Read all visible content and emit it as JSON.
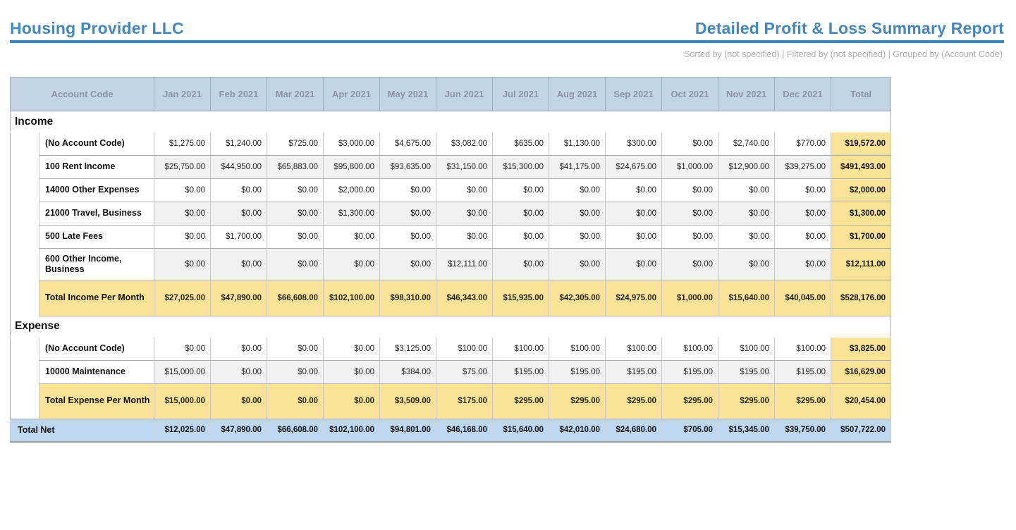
{
  "header": {
    "company": "Housing Provider LLC",
    "report_title": "Detailed Profit & Loss Summary Report",
    "subtitle": "Sorted by (not specified) | Filtered by (not specified) | Grouped by (Account Code)"
  },
  "colors": {
    "title_blue": "#4687b7",
    "table_header_bg": "#c5d4e2",
    "table_header_text": "#8a94a3",
    "total_highlight": "#fae396",
    "net_row_bg": "#bdd7f1",
    "alt_row_bg": "#f1f1f1"
  },
  "table": {
    "columns": [
      "Account Code",
      "Jan 2021",
      "Feb 2021",
      "Mar 2021",
      "Apr 2021",
      "May 2021",
      "Jun 2021",
      "Jul 2021",
      "Aug 2021",
      "Sep 2021",
      "Oct 2021",
      "Nov 2021",
      "Dec 2021",
      "Total"
    ],
    "sections": [
      {
        "name": "Income",
        "rows": [
          {
            "label": "(No Account Code)",
            "values": [
              "$1,275.00",
              "$1,240.00",
              "$725.00",
              "$3,000.00",
              "$4,675.00",
              "$3,082.00",
              "$635.00",
              "$1,130.00",
              "$300.00",
              "$0.00",
              "$2,740.00",
              "$770.00"
            ],
            "total": "$19,572.00"
          },
          {
            "label": "100 Rent Income",
            "values": [
              "$25,750.00",
              "$44,950.00",
              "$65,883.00",
              "$95,800.00",
              "$93,635.00",
              "$31,150.00",
              "$15,300.00",
              "$41,175.00",
              "$24,675.00",
              "$1,000.00",
              "$12,900.00",
              "$39,275.00"
            ],
            "total": "$491,493.00"
          },
          {
            "label": "14000 Other Expenses",
            "values": [
              "$0.00",
              "$0.00",
              "$0.00",
              "$2,000.00",
              "$0.00",
              "$0.00",
              "$0.00",
              "$0.00",
              "$0.00",
              "$0.00",
              "$0.00",
              "$0.00"
            ],
            "total": "$2,000.00"
          },
          {
            "label": "21000 Travel, Business",
            "values": [
              "$0.00",
              "$0.00",
              "$0.00",
              "$1,300.00",
              "$0.00",
              "$0.00",
              "$0.00",
              "$0.00",
              "$0.00",
              "$0.00",
              "$0.00",
              "$0.00"
            ],
            "total": "$1,300.00"
          },
          {
            "label": "500 Late Fees",
            "values": [
              "$0.00",
              "$1,700.00",
              "$0.00",
              "$0.00",
              "$0.00",
              "$0.00",
              "$0.00",
              "$0.00",
              "$0.00",
              "$0.00",
              "$0.00",
              "$0.00"
            ],
            "total": "$1,700.00"
          },
          {
            "label": "600 Other Income, Business",
            "values": [
              "$0.00",
              "$0.00",
              "$0.00",
              "$0.00",
              "$0.00",
              "$12,111.00",
              "$0.00",
              "$0.00",
              "$0.00",
              "$0.00",
              "$0.00",
              "$0.00"
            ],
            "total": "$12,111.00"
          }
        ],
        "total_row": {
          "label": "Total Income Per Month",
          "values": [
            "$27,025.00",
            "$47,890.00",
            "$66,608.00",
            "$102,100.00",
            "$98,310.00",
            "$46,343.00",
            "$15,935.00",
            "$42,305.00",
            "$24,975.00",
            "$1,000.00",
            "$15,640.00",
            "$40,045.00"
          ],
          "total": "$528,176.00"
        }
      },
      {
        "name": "Expense",
        "rows": [
          {
            "label": "(No Account Code)",
            "values": [
              "$0.00",
              "$0.00",
              "$0.00",
              "$0.00",
              "$3,125.00",
              "$100.00",
              "$100.00",
              "$100.00",
              "$100.00",
              "$100.00",
              "$100.00",
              "$100.00"
            ],
            "total": "$3,825.00"
          },
          {
            "label": "10000 Maintenance",
            "values": [
              "$15,000.00",
              "$0.00",
              "$0.00",
              "$0.00",
              "$384.00",
              "$75.00",
              "$195.00",
              "$195.00",
              "$195.00",
              "$195.00",
              "$195.00",
              "$195.00"
            ],
            "total": "$16,629.00"
          }
        ],
        "total_row": {
          "label": "Total Expense Per Month",
          "values": [
            "$15,000.00",
            "$0.00",
            "$0.00",
            "$0.00",
            "$3,509.00",
            "$175.00",
            "$295.00",
            "$295.00",
            "$295.00",
            "$295.00",
            "$295.00",
            "$295.00"
          ],
          "total": "$20,454.00"
        }
      }
    ],
    "net_row": {
      "label": "Total Net",
      "values": [
        "$12,025.00",
        "$47,890.00",
        "$66,608.00",
        "$102,100.00",
        "$94,801.00",
        "$46,168.00",
        "$15,640.00",
        "$42,010.00",
        "$24,680.00",
        "$705.00",
        "$15,345.00",
        "$39,750.00"
      ],
      "total": "$507,722.00"
    }
  }
}
